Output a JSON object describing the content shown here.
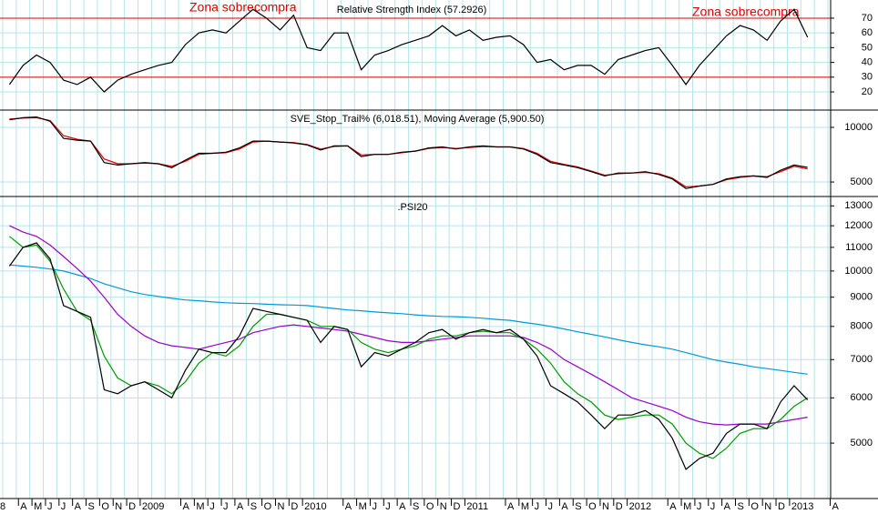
{
  "chart_data": [
    {
      "type": "line",
      "title": "Relative Strength Index (57.2926)",
      "annotations": [
        "Zona sobrecompra",
        "Zona sobrecompra"
      ],
      "xlim": [
        1.3,
        62.7
      ],
      "ylim": [
        7.7,
        82.3
      ],
      "yticks": [
        70,
        60,
        50,
        40,
        30,
        20
      ],
      "log": false,
      "grid": true,
      "hlines": [
        70,
        30
      ],
      "hline_color": "#e00000",
      "x": [
        2,
        3,
        4,
        5,
        6,
        7,
        8,
        9,
        10,
        11,
        12,
        13,
        14,
        15,
        16,
        17,
        18,
        19,
        20,
        21,
        22,
        23,
        24,
        25,
        26,
        27,
        28,
        29,
        30,
        31,
        32,
        33,
        34,
        35,
        36,
        37,
        38,
        39,
        40,
        41,
        42,
        43,
        44,
        45,
        46,
        47,
        48,
        49,
        50,
        51,
        52,
        53,
        54,
        55,
        56,
        57,
        58,
        59,
        60,
        61
      ],
      "series": [
        {
          "color": "#000000",
          "values": [
            25,
            38,
            45,
            40,
            28,
            25,
            30,
            20,
            28,
            32,
            35,
            38,
            40,
            52,
            60,
            62,
            60,
            68,
            76,
            70,
            62,
            72,
            50,
            48,
            60,
            60,
            35,
            45,
            48,
            52,
            55,
            58,
            65,
            58,
            62,
            55,
            57,
            58,
            52,
            40,
            42,
            35,
            38,
            38,
            32,
            42,
            45,
            48,
            50,
            38,
            25,
            38,
            48,
            58,
            65,
            62,
            55,
            68,
            76,
            57
          ]
        }
      ]
    },
    {
      "type": "line",
      "title": "SVE_Stop_Trail% (6,018.51), Moving Average (5,900.50)",
      "xlim": [
        1.3,
        62.7
      ],
      "ylim": [
        4160,
        12450
      ],
      "yticks": [
        10000,
        5000
      ],
      "log": true,
      "grid": true,
      "x": [
        2,
        3,
        4,
        5,
        6,
        7,
        8,
        9,
        10,
        11,
        12,
        13,
        14,
        15,
        16,
        17,
        18,
        19,
        20,
        21,
        22,
        23,
        24,
        25,
        26,
        27,
        28,
        29,
        30,
        31,
        32,
        33,
        34,
        35,
        36,
        37,
        38,
        39,
        40,
        41,
        42,
        43,
        44,
        45,
        46,
        47,
        48,
        49,
        50,
        51,
        52,
        53,
        54,
        55,
        56,
        57,
        58,
        59,
        60,
        61
      ],
      "series": [
        {
          "color": "#e00000",
          "values": [
            11100,
            11250,
            11300,
            10900,
            9000,
            8600,
            8400,
            6700,
            6300,
            6300,
            6350,
            6300,
            6100,
            6500,
            7100,
            7200,
            7250,
            7600,
            8300,
            8400,
            8300,
            8250,
            8050,
            7600,
            7850,
            7900,
            7050,
            7100,
            7100,
            7250,
            7400,
            7650,
            7750,
            7650,
            7750,
            7850,
            7800,
            7800,
            7650,
            7200,
            6500,
            6250,
            6050,
            5750,
            5450,
            5550,
            5600,
            5650,
            5550,
            5250,
            4700,
            4750,
            4850,
            5150,
            5300,
            5400,
            5350,
            5700,
            6100,
            5900
          ]
        },
        {
          "color": "#000000",
          "values": [
            11000,
            11300,
            11400,
            10800,
            8700,
            8500,
            8400,
            6400,
            6200,
            6300,
            6400,
            6300,
            6000,
            6600,
            7200,
            7200,
            7300,
            7700,
            8400,
            8400,
            8300,
            8200,
            8000,
            7500,
            7900,
            7900,
            6900,
            7100,
            7100,
            7300,
            7400,
            7700,
            7800,
            7600,
            7800,
            7900,
            7800,
            7800,
            7600,
            7100,
            6400,
            6200,
            6000,
            5700,
            5400,
            5600,
            5600,
            5700,
            5500,
            5200,
            4600,
            4750,
            4850,
            5200,
            5350,
            5400,
            5300,
            5800,
            6200,
            6018
          ]
        }
      ]
    },
    {
      "type": "line",
      "title": ".PSI20",
      "xlim": [
        1.3,
        62.7
      ],
      "ylim": [
        4000,
        13500
      ],
      "yticks": [
        13000,
        12000,
        11000,
        10000,
        9000,
        8000,
        7000,
        6000,
        5000
      ],
      "log": true,
      "grid": true,
      "xgrid": [
        1.5,
        2.5,
        3.5,
        4.5,
        5.5,
        6.5,
        7.5,
        8.5,
        9.5,
        10.5,
        11.5,
        12.5,
        13.5,
        14.5,
        15.5,
        16.5,
        17.5,
        18.5,
        19.5,
        20.5,
        21.5,
        22.5,
        23.5,
        24.5,
        25.5,
        26.5,
        27.5,
        28.5,
        29.5,
        30.5,
        31.5,
        32.5,
        33.5,
        34.5,
        35.5,
        36.5,
        37.5,
        38.5,
        39.5,
        40.5,
        41.5,
        42.5,
        43.5,
        44.5,
        45.5,
        46.5,
        47.5,
        48.5,
        49.5,
        50.5,
        51.5,
        52.5,
        53.5,
        54.5,
        55.5,
        56.5,
        57.5,
        58.5,
        59.5,
        60.5,
        61.5,
        62.5
      ],
      "xticks": [
        {
          "value": 1.5,
          "label": "8"
        },
        {
          "value": 3,
          "label": "A"
        },
        {
          "value": 4,
          "label": "M"
        },
        {
          "value": 5,
          "label": "J"
        },
        {
          "value": 6,
          "label": "J"
        },
        {
          "value": 7,
          "label": "A"
        },
        {
          "value": 8,
          "label": "S"
        },
        {
          "value": 9,
          "label": "O"
        },
        {
          "value": 10,
          "label": "N"
        },
        {
          "value": 11,
          "label": "D"
        },
        {
          "value": 12,
          "label": "2009"
        },
        {
          "value": 15,
          "label": "A"
        },
        {
          "value": 16,
          "label": "M"
        },
        {
          "value": 17,
          "label": "J"
        },
        {
          "value": 18,
          "label": "J"
        },
        {
          "value": 19,
          "label": "A"
        },
        {
          "value": 20,
          "label": "S"
        },
        {
          "value": 21,
          "label": "O"
        },
        {
          "value": 22,
          "label": "N"
        },
        {
          "value": 23,
          "label": "D"
        },
        {
          "value": 24,
          "label": "2010"
        },
        {
          "value": 27,
          "label": "A"
        },
        {
          "value": 28,
          "label": "M"
        },
        {
          "value": 29,
          "label": "J"
        },
        {
          "value": 30,
          "label": "J"
        },
        {
          "value": 31,
          "label": "A"
        },
        {
          "value": 32,
          "label": "S"
        },
        {
          "value": 33,
          "label": "O"
        },
        {
          "value": 34,
          "label": "N"
        },
        {
          "value": 35,
          "label": "D"
        },
        {
          "value": 36,
          "label": "2011"
        },
        {
          "value": 39,
          "label": "A"
        },
        {
          "value": 40,
          "label": "M"
        },
        {
          "value": 41,
          "label": "J"
        },
        {
          "value": 42,
          "label": "J"
        },
        {
          "value": 43,
          "label": "A"
        },
        {
          "value": 44,
          "label": "S"
        },
        {
          "value": 45,
          "label": "O"
        },
        {
          "value": 46,
          "label": "N"
        },
        {
          "value": 47,
          "label": "D"
        },
        {
          "value": 48,
          "label": "2012"
        },
        {
          "value": 51,
          "label": "A"
        },
        {
          "value": 52,
          "label": "M"
        },
        {
          "value": 53,
          "label": "J"
        },
        {
          "value": 54,
          "label": "J"
        },
        {
          "value": 55,
          "label": "A"
        },
        {
          "value": 56,
          "label": "S"
        },
        {
          "value": 57,
          "label": "O"
        },
        {
          "value": 58,
          "label": "N"
        },
        {
          "value": 59,
          "label": "D"
        },
        {
          "value": 60,
          "label": "2013"
        },
        {
          "value": 63,
          "label": "A"
        }
      ],
      "x": [
        2,
        3,
        4,
        5,
        6,
        7,
        8,
        9,
        10,
        11,
        12,
        13,
        14,
        15,
        16,
        17,
        18,
        19,
        20,
        21,
        22,
        23,
        24,
        25,
        26,
        27,
        28,
        29,
        30,
        31,
        32,
        33,
        34,
        35,
        36,
        37,
        38,
        39,
        40,
        41,
        42,
        43,
        44,
        45,
        46,
        47,
        48,
        49,
        50,
        51,
        52,
        53,
        54,
        55,
        56,
        57,
        58,
        59,
        60,
        61
      ],
      "series": [
        {
          "color": "#0099dd",
          "values": [
            10250,
            10200,
            10150,
            10080,
            10000,
            9850,
            9700,
            9500,
            9350,
            9200,
            9100,
            9030,
            8960,
            8900,
            8870,
            8830,
            8800,
            8780,
            8770,
            8750,
            8730,
            8720,
            8700,
            8650,
            8600,
            8550,
            8520,
            8480,
            8450,
            8420,
            8380,
            8350,
            8330,
            8320,
            8300,
            8270,
            8230,
            8200,
            8130,
            8070,
            8000,
            7920,
            7830,
            7750,
            7670,
            7580,
            7500,
            7430,
            7370,
            7300,
            7200,
            7100,
            7000,
            6930,
            6870,
            6800,
            6750,
            6700,
            6650,
            6600
          ]
        },
        {
          "color": "#9900cc",
          "values": [
            12000,
            11700,
            11500,
            11100,
            10600,
            10100,
            9600,
            9000,
            8400,
            8000,
            7700,
            7500,
            7400,
            7350,
            7300,
            7400,
            7500,
            7600,
            7800,
            7900,
            8000,
            8050,
            8000,
            7950,
            7900,
            7850,
            7750,
            7650,
            7550,
            7500,
            7500,
            7550,
            7600,
            7650,
            7700,
            7700,
            7700,
            7700,
            7650,
            7500,
            7300,
            7000,
            6800,
            6600,
            6400,
            6200,
            6000,
            5900,
            5800,
            5700,
            5550,
            5450,
            5400,
            5380,
            5400,
            5400,
            5400,
            5450,
            5500,
            5550
          ]
        },
        {
          "color": "#009900",
          "values": [
            11500,
            11000,
            11100,
            10400,
            9300,
            8500,
            8200,
            7100,
            6500,
            6300,
            6400,
            6300,
            6100,
            6400,
            6900,
            7200,
            7100,
            7400,
            8000,
            8400,
            8400,
            8300,
            8200,
            8000,
            8000,
            7900,
            7500,
            7300,
            7200,
            7300,
            7400,
            7600,
            7700,
            7700,
            7800,
            7850,
            7800,
            7800,
            7600,
            7300,
            6900,
            6400,
            6100,
            5900,
            5600,
            5500,
            5550,
            5600,
            5600,
            5400,
            5000,
            4800,
            4700,
            4900,
            5200,
            5300,
            5300,
            5500,
            5800,
            6000
          ]
        },
        {
          "color": "#000000",
          "values": [
            10200,
            11000,
            11200,
            10500,
            8700,
            8500,
            8300,
            6200,
            6100,
            6300,
            6400,
            6200,
            6000,
            6700,
            7300,
            7200,
            7200,
            7700,
            8600,
            8500,
            8400,
            8300,
            8200,
            7500,
            8000,
            7900,
            6800,
            7200,
            7100,
            7300,
            7500,
            7800,
            7900,
            7600,
            7800,
            7900,
            7800,
            7900,
            7600,
            7100,
            6300,
            6100,
            5900,
            5600,
            5300,
            5600,
            5600,
            5700,
            5500,
            5100,
            4500,
            4700,
            4800,
            5200,
            5400,
            5400,
            5300,
            5900,
            6300,
            5950
          ]
        }
      ]
    }
  ]
}
